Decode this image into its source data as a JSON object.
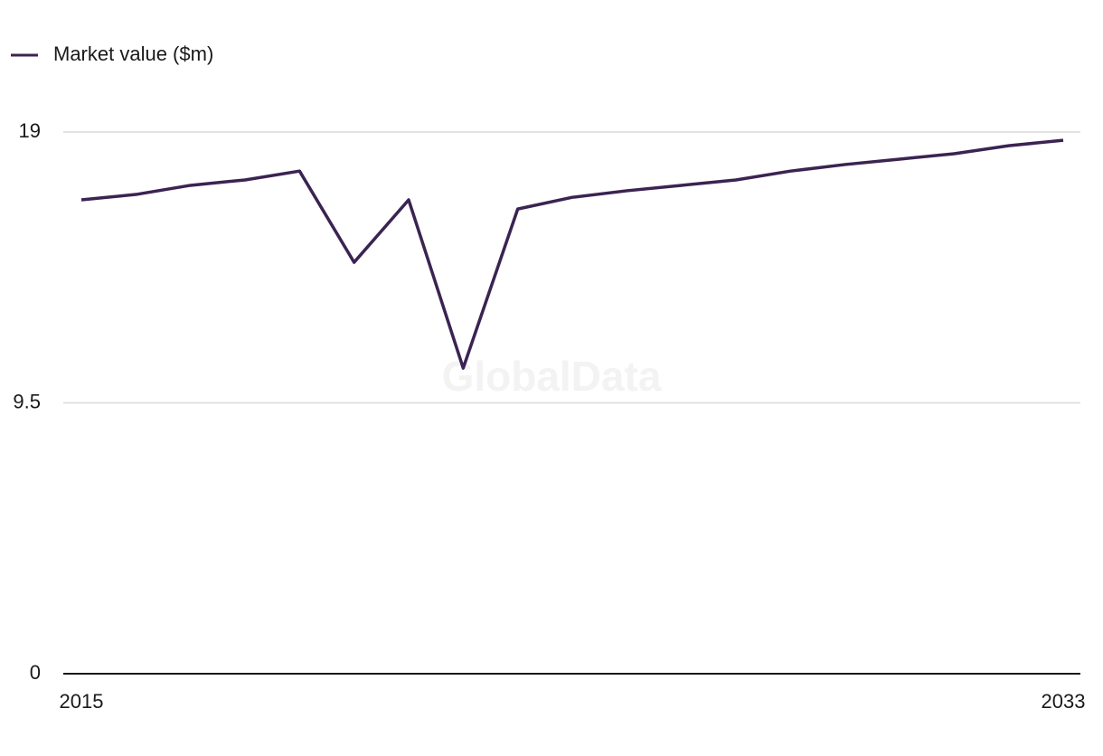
{
  "chart_data": {
    "type": "line",
    "watermark": "GlobalData",
    "x": [
      2015,
      2016,
      2017,
      2018,
      2019,
      2020,
      2021,
      2022,
      2023,
      2024,
      2025,
      2026,
      2027,
      2028,
      2029,
      2030,
      2031,
      2032,
      2033
    ],
    "series": [
      {
        "name": "Market value ($m)",
        "color": "#3b2352",
        "values": [
          16.62,
          16.81,
          17.13,
          17.32,
          17.63,
          14.43,
          16.62,
          10.72,
          16.3,
          16.71,
          16.94,
          17.13,
          17.32,
          17.63,
          17.86,
          18.05,
          18.24,
          18.52,
          18.71
        ]
      }
    ],
    "xlim": [
      2015,
      2033
    ],
    "xticks": [
      2015,
      2033
    ],
    "ylim": [
      0,
      19
    ],
    "yticks": [
      0,
      9.5,
      19
    ],
    "grid": true,
    "legend": "top-left"
  }
}
